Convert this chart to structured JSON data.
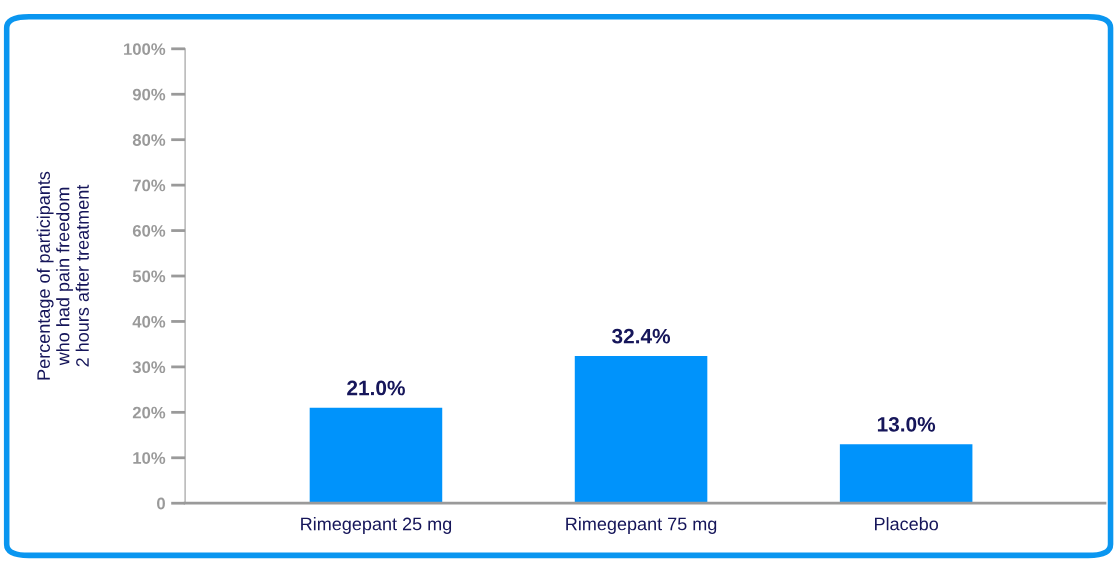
{
  "chart_data": {
    "type": "bar",
    "ylabel": "Percentage of participants\nwho had pain freedom\n2 hours after treatment",
    "categories": [
      "Rimegepant 25 mg",
      "Rimegepant 75 mg",
      "Placebo"
    ],
    "values": [
      21.0,
      32.4,
      13.0
    ],
    "color": "#0093fb",
    "value_labels": [
      "21.0%",
      "32.4%",
      "13.0%"
    ],
    "ylim": [
      0,
      100
    ],
    "yticks": [
      {
        "value": 0,
        "label": "0"
      },
      {
        "value": 10,
        "label": "10%"
      },
      {
        "value": 20,
        "label": "20%"
      },
      {
        "value": 30,
        "label": "30%"
      },
      {
        "value": 40,
        "label": "40%"
      },
      {
        "value": 50,
        "label": "50%"
      },
      {
        "value": 60,
        "label": "60%"
      },
      {
        "value": 70,
        "label": "70%"
      },
      {
        "value": 80,
        "label": "80%"
      },
      {
        "value": 90,
        "label": "90%"
      },
      {
        "value": 100,
        "label": "100%"
      }
    ],
    "grid": false,
    "legend": false
  }
}
